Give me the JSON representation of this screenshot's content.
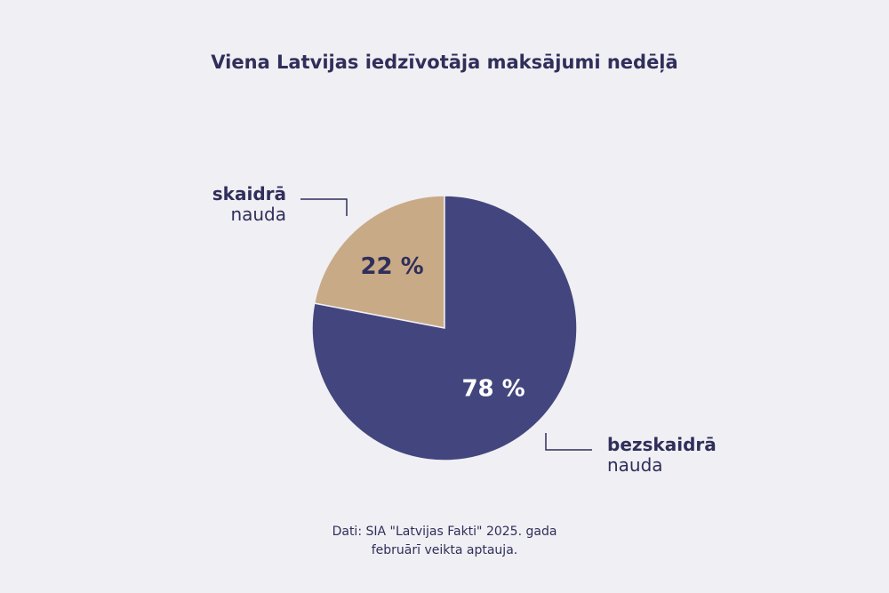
{
  "chart_data": {
    "type": "pie",
    "title": "Viena Latvijas iedzīvotāja maksājumi nedēļā",
    "slices": [
      {
        "label_bold": "skaidrā",
        "label_light": "nauda",
        "value": 22,
        "value_label": "22 %",
        "color": "#c9aa86"
      },
      {
        "label_bold": "bezskaidrā",
        "label_light": "nauda",
        "value": 78,
        "value_label": "78 %",
        "color": "#43467e"
      }
    ]
  },
  "source": {
    "line1": "Dati: SIA \"Latvijas Fakti\" 2025. gada",
    "line2": "februārī veikta aptauja."
  },
  "colors": {
    "background": "#f0eff4",
    "text": "#2f2f5a",
    "value_text_on_light": "#2f2f5a",
    "value_text_on_dark": "#ffffff"
  }
}
